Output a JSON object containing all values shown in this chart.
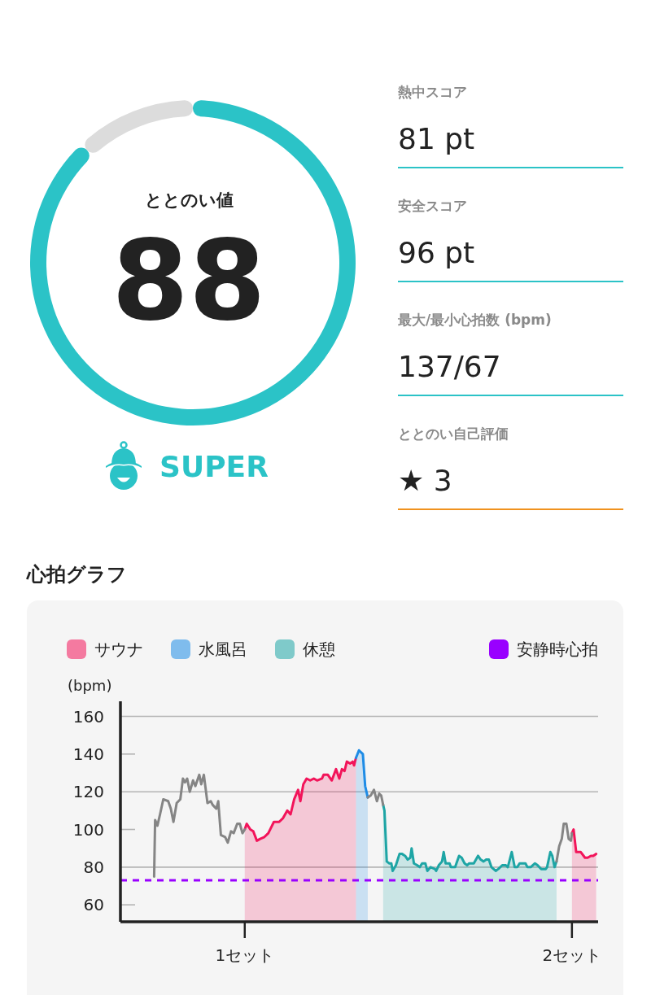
{
  "chart_data": [
    {
      "type": "donut",
      "title": "ととのい値",
      "categories": [
        null,
        null
      ],
      "values": [
        88,
        12
      ],
      "colors": [
        "#2bc3c7",
        "#dcdcdc"
      ],
      "value_labels": [
        "88",
        null
      ],
      "annotations": [
        "SUPER"
      ]
    },
    {
      "type": "other",
      "annotations": [
        "熱中スコア",
        "81 pt",
        "安全スコア",
        "96 pt",
        "最大/最小心拍数 (bpm)",
        "137/67",
        "ととのい自己評価",
        "★ 3"
      ]
    },
    {
      "type": "line",
      "title": "心拍グラフ",
      "ylabel": "(bpm)",
      "xlim": [
        0.62,
        2.08
      ],
      "xticks": [
        {
          "value": 1,
          "label": "1セット"
        },
        {
          "value": 2,
          "label": "2セット"
        }
      ],
      "ylim": [
        51,
        168
      ],
      "yticks": [
        60,
        80,
        100,
        120,
        140,
        160
      ],
      "grid": "y",
      "legend": "top",
      "ref_lines": [
        {
          "axis": "y",
          "value": 73,
          "label": "安静時心拍",
          "color": "#9900ff",
          "line_style": "dashed"
        }
      ],
      "series": [
        {
          "type": "line",
          "color": "#858585",
          "x": [
            0.723,
            0.726,
            0.733,
            0.741,
            0.751,
            0.766,
            0.774,
            0.782,
            0.792,
            0.803,
            0.811,
            0.817,
            0.824,
            0.832,
            0.842,
            0.849,
            0.861,
            0.867,
            0.875,
            0.886,
            0.896,
            0.902,
            0.913,
            0.919,
            0.927,
            0.94,
            0.948,
            0.958,
            0.966,
            0.977,
            0.985,
            0.993,
            1.0,
            1.2,
            1.376,
            1.385,
            1.395,
            1.404,
            1.411,
            1.417,
            1.423,
            1.7,
            1.953,
            1.961,
            1.969,
            1.975,
            1.983,
            1.99,
            1.997,
            2.0
          ],
          "values": [
            75,
            105,
            102,
            108,
            116,
            115,
            111,
            104,
            114,
            116,
            127,
            125,
            127,
            120,
            126,
            123,
            129,
            124,
            129,
            114,
            115,
            113,
            111,
            115,
            97,
            96,
            93,
            99,
            98,
            103,
            103,
            98,
            100,
            null,
            117,
            118,
            121,
            115,
            119,
            118,
            113,
            null,
            83,
            91,
            95,
            103,
            103,
            95,
            94,
            98
          ]
        },
        {
          "name": "サウナ",
          "type": "area",
          "color": "#f2145a",
          "x": [
            1.0,
            1.006,
            1.017,
            1.026,
            1.037,
            1.047,
            1.06,
            1.072,
            1.089,
            1.105,
            1.117,
            1.13,
            1.14,
            1.151,
            1.163,
            1.17,
            1.179,
            1.189,
            1.2,
            1.211,
            1.221,
            1.236,
            1.241,
            1.254,
            1.266,
            1.279,
            1.289,
            1.297,
            1.305,
            1.312,
            1.322,
            1.33,
            1.334,
            1.34,
            1.6,
            2.0,
            2.005,
            2.013,
            2.027,
            2.04,
            2.048,
            2.058,
            2.065,
            2.074
          ],
          "values": [
            100,
            103,
            100,
            99,
            94,
            95,
            96,
            98,
            104,
            104,
            106,
            110,
            108,
            116,
            121,
            115,
            124,
            127,
            126,
            127,
            126,
            127,
            129,
            129,
            126,
            132,
            127,
            132,
            131,
            136,
            135,
            136,
            134,
            138,
            null,
            98,
            100,
            88,
            88,
            85,
            85,
            86,
            86,
            87
          ]
        },
        {
          "name": "水風呂",
          "type": "area",
          "color": "#1e8ce6",
          "x": [
            1.34,
            1.349,
            1.361,
            1.368,
            1.376
          ],
          "values": [
            138,
            142,
            140,
            123,
            117
          ]
        },
        {
          "name": "休憩",
          "type": "area",
          "color": "#1ea5a5",
          "x": [
            1.423,
            1.427,
            1.434,
            1.442,
            1.448,
            1.452,
            1.462,
            1.473,
            1.481,
            1.49,
            1.498,
            1.506,
            1.51,
            1.517,
            1.527,
            1.535,
            1.542,
            1.552,
            1.558,
            1.568,
            1.581,
            1.585,
            1.593,
            1.603,
            1.608,
            1.614,
            1.626,
            1.63,
            1.643,
            1.655,
            1.663,
            1.672,
            1.68,
            1.686,
            1.7,
            1.713,
            1.721,
            1.73,
            1.738,
            1.746,
            1.754,
            1.767,
            1.775,
            1.787,
            1.798,
            1.804,
            1.816,
            1.825,
            1.833,
            1.84,
            1.858,
            1.864,
            1.874,
            1.887,
            1.895,
            1.906,
            1.92,
            1.924,
            1.934,
            1.94,
            1.947,
            1.953
          ],
          "values": [
            113,
            110,
            83,
            82,
            82,
            78,
            81,
            87,
            87,
            86,
            84,
            85,
            90,
            82,
            81,
            80,
            82,
            82,
            78,
            80,
            79,
            78,
            81,
            83,
            88,
            82,
            82,
            80,
            80,
            86,
            85,
            82,
            81,
            82,
            82,
            86,
            84,
            83,
            84,
            84,
            80,
            78,
            79,
            81,
            81,
            80,
            88,
            80,
            80,
            82,
            82,
            80,
            80,
            82,
            81,
            79,
            79,
            80,
            88,
            86,
            80,
            83
          ]
        }
      ]
    }
  ]
}
